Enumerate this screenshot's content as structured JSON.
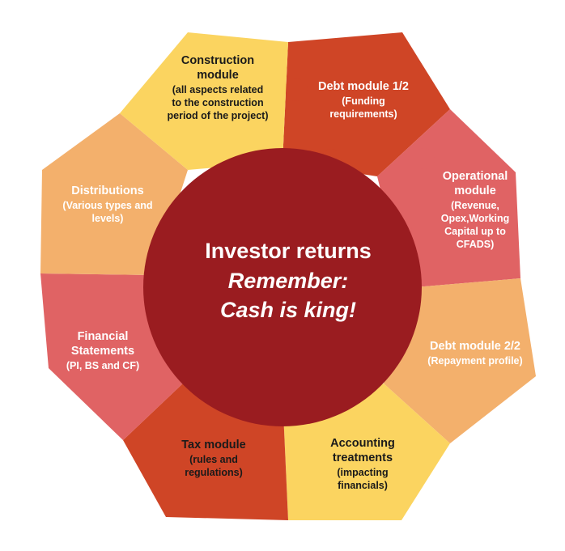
{
  "colors": {
    "center": "#9a1c20",
    "yellow": "#fbd460",
    "red_orange": "#cf4526",
    "pink": "#e06364",
    "peach": "#f3b06c",
    "dark_text": "#1a1a1a",
    "light_text": "#ffffff"
  },
  "center": {
    "title": "Investor returns",
    "line2": "Remember:",
    "line3": "Cash is king!"
  },
  "segments": [
    {
      "id": "debt1",
      "title": [
        "Debt module 1/2"
      ],
      "sub": [
        "(Funding",
        "requirements)"
      ]
    },
    {
      "id": "operational",
      "title": [
        "Operational",
        "module"
      ],
      "sub": [
        "(Revenue,",
        "Opex,Working",
        "Capital up to",
        "CFADS)"
      ]
    },
    {
      "id": "debt2",
      "title": [
        "Debt module 2/2"
      ],
      "sub": [
        "(Repayment profile)"
      ]
    },
    {
      "id": "accounting",
      "title": [
        "Accounting",
        "treatments"
      ],
      "sub": [
        "(impacting",
        "financials)"
      ]
    },
    {
      "id": "tax",
      "title": [
        "Tax module"
      ],
      "sub": [
        "(rules and",
        "regulations)"
      ]
    },
    {
      "id": "financial",
      "title": [
        "Financial",
        "Statements"
      ],
      "sub": [
        "(PI, BS and CF)"
      ]
    },
    {
      "id": "distributions",
      "title": [
        "Distributions"
      ],
      "sub": [
        "(Various types and",
        "levels)"
      ]
    },
    {
      "id": "construction",
      "title": [
        "Construction",
        "module"
      ],
      "sub": [
        "(all aspects related",
        "to the construction",
        "period of the project)"
      ]
    }
  ]
}
